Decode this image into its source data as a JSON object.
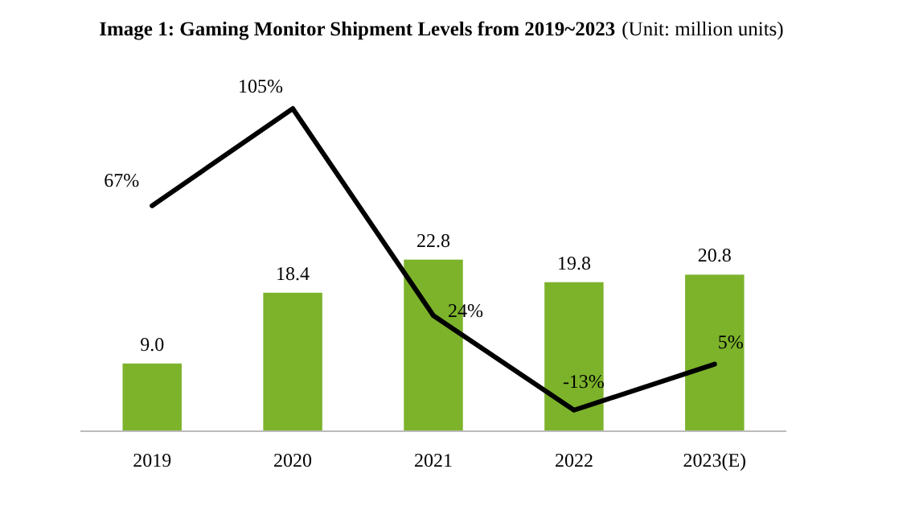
{
  "chart_data": {
    "type": "bar",
    "title": "Image 1: Gaming Monitor Shipment Levels from 2019~2023",
    "subtitle": "(Unit: million units)",
    "categories": [
      "2019",
      "2020",
      "2021",
      "2022",
      "2023(E)"
    ],
    "series": [
      {
        "color": "#7cb32b",
        "values": [
          9.0,
          18.4,
          22.8,
          19.8,
          20.8
        ],
        "value_labels": [
          "9.0",
          "18.4",
          "22.8",
          "19.8",
          "20.8"
        ]
      },
      {
        "type": "line",
        "axis": "y2",
        "color": "#000000",
        "values": [
          67,
          105,
          24,
          -13,
          5
        ],
        "value_labels": [
          "67%",
          "105%",
          "24%",
          "-13%",
          "5%"
        ]
      }
    ],
    "tick_labels": "x",
    "marker": "none",
    "line_style": "solid"
  }
}
